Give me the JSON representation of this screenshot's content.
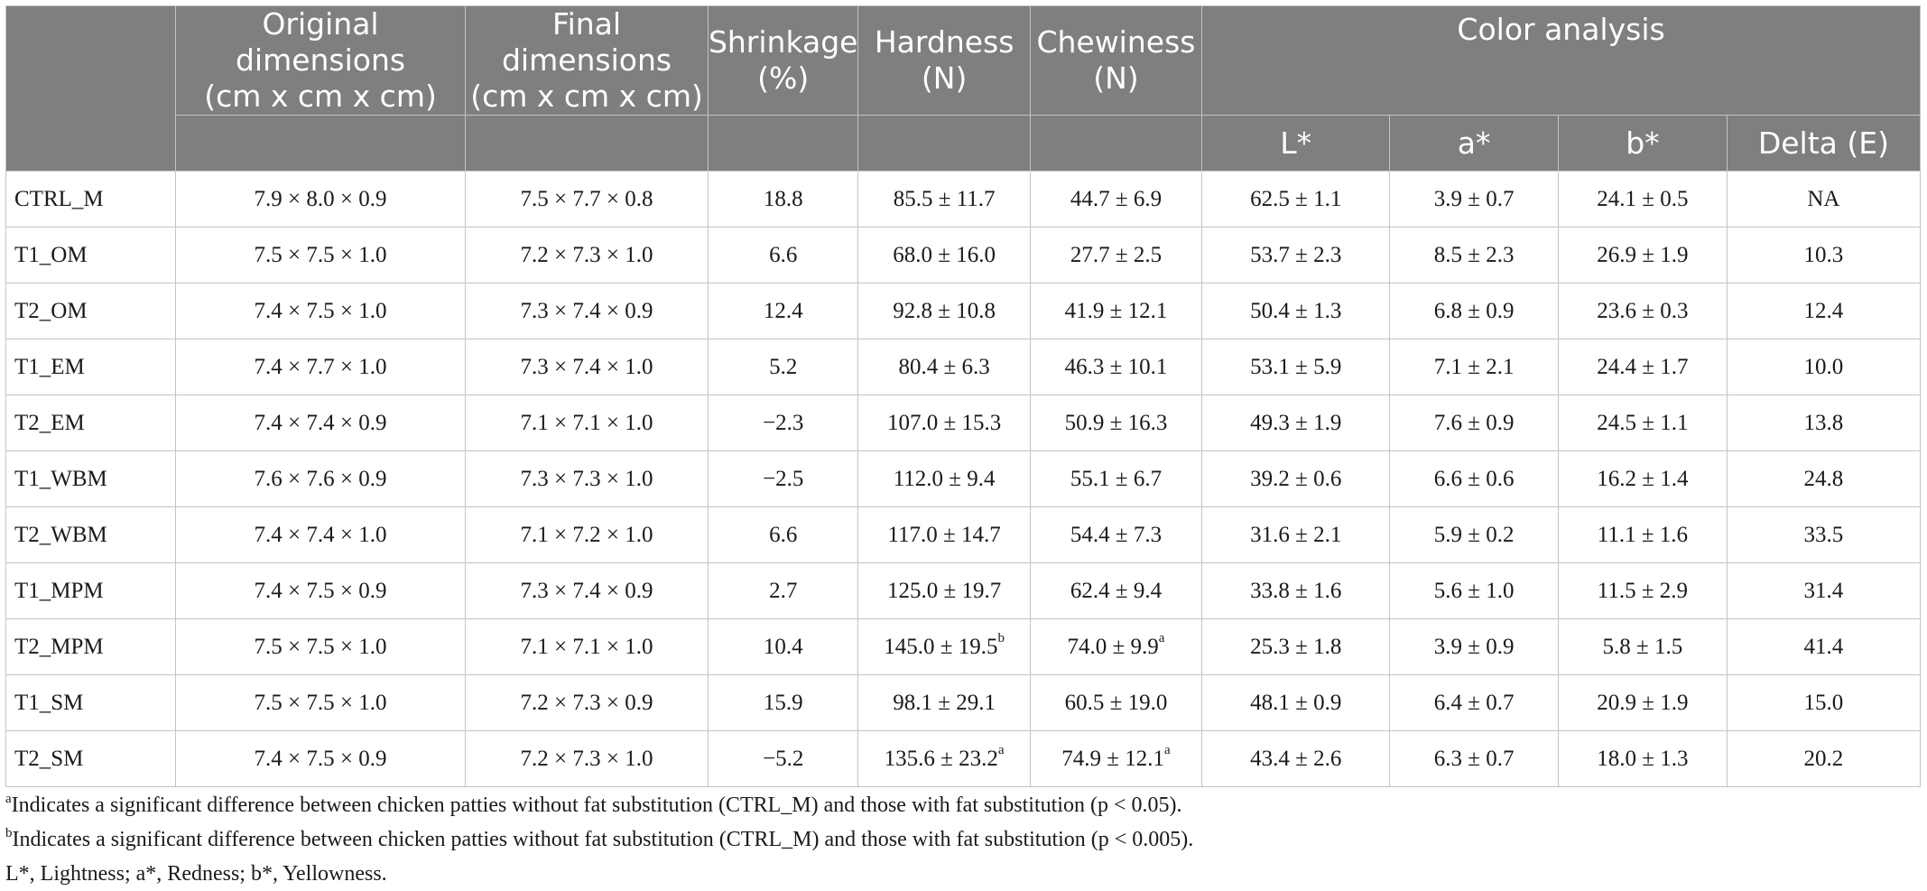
{
  "table": {
    "headers": {
      "row1": [
        "",
        "Original dimensions\n(cm x cm x cm)",
        "Final dimensions\n(cm x cm x cm)",
        "Shrinkage\n(%)",
        "Hardness\n(N)",
        "Chewiness\n(N)",
        "Color analysis"
      ],
      "row2": [
        "",
        "",
        "",
        "",
        "",
        "",
        "L*",
        "a*",
        "b*",
        "Delta (E)"
      ]
    },
    "rows": [
      {
        "cells": [
          "CTRL_M",
          "7.9 × 8.0 × 0.9",
          "7.5 × 7.7 × 0.8",
          "18.8",
          "85.5 ± 11.7",
          "44.7 ± 6.9",
          "62.5 ± 1.1",
          "3.9 ± 0.7",
          "24.1 ± 0.5",
          "NA"
        ],
        "sups": [
          "",
          "",
          "",
          "",
          "",
          "",
          "",
          "",
          "",
          ""
        ]
      },
      {
        "cells": [
          "T1_OM",
          "7.5 × 7.5 × 1.0",
          "7.2 × 7.3 × 1.0",
          "6.6",
          "68.0 ± 16.0",
          "27.7 ± 2.5",
          "53.7 ± 2.3",
          "8.5 ± 2.3",
          "26.9 ± 1.9",
          "10.3"
        ],
        "sups": [
          "",
          "",
          "",
          "",
          "",
          "",
          "",
          "",
          "",
          ""
        ]
      },
      {
        "cells": [
          "T2_OM",
          "7.4 × 7.5 × 1.0",
          "7.3 × 7.4 × 0.9",
          "12.4",
          "92.8 ± 10.8",
          "41.9 ± 12.1",
          "50.4 ± 1.3",
          "6.8 ± 0.9",
          "23.6 ± 0.3",
          "12.4"
        ],
        "sups": [
          "",
          "",
          "",
          "",
          "",
          "",
          "",
          "",
          "",
          ""
        ]
      },
      {
        "cells": [
          "T1_EM",
          "7.4 × 7.7 × 1.0",
          "7.3 × 7.4 × 1.0",
          "5.2",
          "80.4 ± 6.3",
          "46.3 ± 10.1",
          "53.1 ± 5.9",
          "7.1 ± 2.1",
          "24.4 ± 1.7",
          "10.0"
        ],
        "sups": [
          "",
          "",
          "",
          "",
          "",
          "",
          "",
          "",
          "",
          ""
        ]
      },
      {
        "cells": [
          "T2_EM",
          "7.4 × 7.4 × 0.9",
          "7.1 × 7.1 × 1.0",
          "−2.3",
          "107.0 ± 15.3",
          "50.9 ± 16.3",
          "49.3 ± 1.9",
          "7.6 ± 0.9",
          "24.5 ± 1.1",
          "13.8"
        ],
        "sups": [
          "",
          "",
          "",
          "",
          "",
          "",
          "",
          "",
          "",
          ""
        ]
      },
      {
        "cells": [
          "T1_WBM",
          "7.6 × 7.6 × 0.9",
          "7.3 × 7.3 × 1.0",
          "−2.5",
          "112.0 ± 9.4",
          "55.1 ± 6.7",
          "39.2 ± 0.6",
          "6.6 ± 0.6",
          "16.2 ± 1.4",
          "24.8"
        ],
        "sups": [
          "",
          "",
          "",
          "",
          "",
          "",
          "",
          "",
          "",
          ""
        ]
      },
      {
        "cells": [
          "T2_WBM",
          "7.4 × 7.4 × 1.0",
          "7.1 × 7.2 × 1.0",
          "6.6",
          "117.0 ± 14.7",
          "54.4 ± 7.3",
          "31.6 ± 2.1",
          "5.9 ± 0.2",
          "11.1 ± 1.6",
          "33.5"
        ],
        "sups": [
          "",
          "",
          "",
          "",
          "",
          "",
          "",
          "",
          "",
          ""
        ]
      },
      {
        "cells": [
          "T1_MPM",
          "7.4 × 7.5 × 0.9",
          "7.3 × 7.4 × 0.9",
          "2.7",
          "125.0 ± 19.7",
          "62.4 ± 9.4",
          "33.8 ± 1.6",
          "5.6 ± 1.0",
          "11.5 ± 2.9",
          "31.4"
        ],
        "sups": [
          "",
          "",
          "",
          "",
          "",
          "",
          "",
          "",
          "",
          ""
        ]
      },
      {
        "cells": [
          "T2_MPM",
          "7.5 × 7.5 × 1.0",
          "7.1 × 7.1 × 1.0",
          "10.4",
          "145.0 ± 19.5",
          "74.0 ± 9.9",
          "25.3 ± 1.8",
          "3.9 ± 0.9",
          "5.8 ± 1.5",
          "41.4"
        ],
        "sups": [
          "",
          "",
          "",
          "",
          "b",
          "a",
          "",
          "",
          "",
          ""
        ]
      },
      {
        "cells": [
          "T1_SM",
          "7.5 × 7.5 × 1.0",
          "7.2 × 7.3 × 0.9",
          "15.9",
          "98.1 ± 29.1",
          "60.5 ± 19.0",
          "48.1 ± 0.9",
          "6.4 ± 0.7",
          "20.9 ± 1.9",
          "15.0"
        ],
        "sups": [
          "",
          "",
          "",
          "",
          "",
          "",
          "",
          "",
          "",
          ""
        ]
      },
      {
        "cells": [
          "T2_SM",
          "7.4 × 7.5 × 0.9",
          "7.2 × 7.3 × 1.0",
          "−5.2",
          "135.6 ± 23.2",
          "74.9 ± 12.1",
          "43.4 ± 2.6",
          "6.3 ± 0.7",
          "18.0 ± 1.3",
          "20.2"
        ],
        "sups": [
          "",
          "",
          "",
          "",
          "a",
          "a",
          "",
          "",
          "",
          ""
        ]
      }
    ]
  },
  "footnotes": [
    {
      "mark": "a",
      "text": "Indicates a significant difference between chicken patties without fat substitution (CTRL_M) and those with fat substitution (p < 0.05)."
    },
    {
      "mark": "b",
      "text": "Indicates a significant difference between chicken patties without fat substitution (CTRL_M) and those with fat substitution (p < 0.005)."
    },
    {
      "mark": "",
      "text": "L*, Lightness; a*, Redness; b*, Yellowness."
    }
  ]
}
